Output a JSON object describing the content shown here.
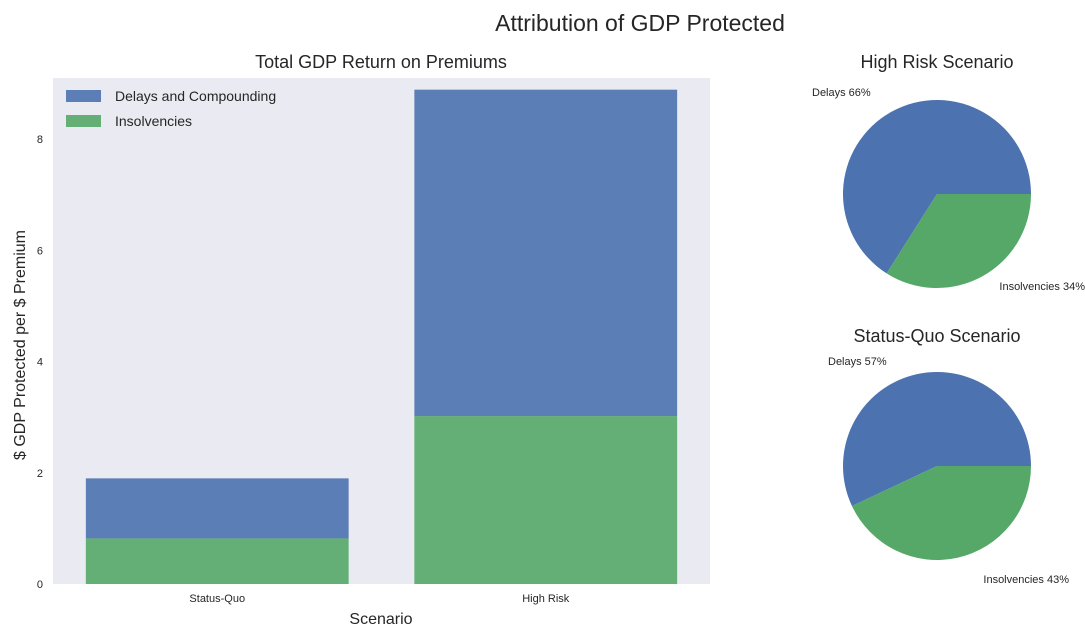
{
  "figure": {
    "title": "Attribution of GDP Protected"
  },
  "colors": {
    "delays": "#4c72b0",
    "insolvencies": "#55a868",
    "axes_background": "#eaeaf2"
  },
  "chart_data": [
    {
      "type": "bar",
      "stacked": true,
      "title": "Total GDP Return on Premiums",
      "xlabel": "Scenario",
      "ylabel": "$ GDP Protected per $ Premium",
      "categories": [
        "Status-Quo",
        "High Risk"
      ],
      "series": [
        {
          "name": "Insolvencies",
          "values": [
            0.82,
            3.02
          ]
        },
        {
          "name": "Delays and Compounding",
          "values": [
            1.08,
            5.87
          ]
        }
      ],
      "ylim": [
        0,
        9.1
      ],
      "yticks": [
        0,
        2,
        4,
        6,
        8
      ],
      "legend_order": [
        "Delays and Compounding",
        "Insolvencies"
      ],
      "legend_position": "top-left",
      "grid": false
    },
    {
      "type": "pie",
      "title": "High Risk Scenario",
      "labels": [
        "Delays 66%",
        "Insolvencies 34%"
      ],
      "values": [
        66,
        34
      ],
      "startangle": 0
    },
    {
      "type": "pie",
      "title": "Status-Quo Scenario",
      "labels": [
        "Delays 57%",
        "Insolvencies 43%"
      ],
      "values": [
        57,
        43
      ],
      "startangle": 0
    }
  ]
}
